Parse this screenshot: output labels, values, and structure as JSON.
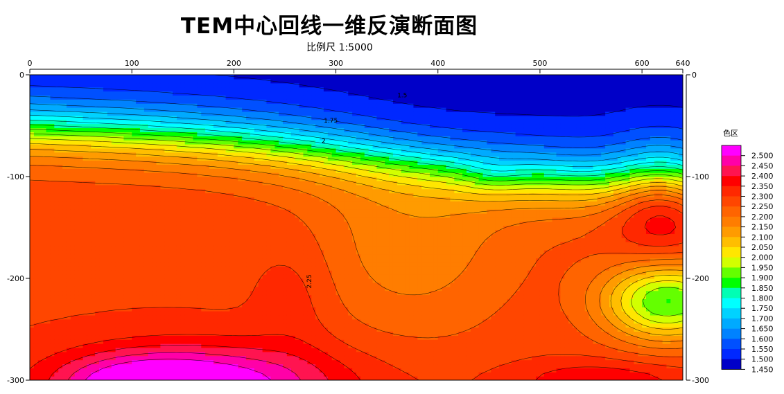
{
  "title": "TEM中心回线一维反演断面图",
  "subtitle": "比例尺 1:5000",
  "legend_title": "色区",
  "chart_data": {
    "type": "heatmap",
    "xlim": [
      0,
      640
    ],
    "ylim": [
      -300,
      0
    ],
    "x_ticks": [
      {
        "value": 0,
        "label": "0"
      },
      {
        "value": 100,
        "label": "100"
      },
      {
        "value": 200,
        "label": "200"
      },
      {
        "value": 300,
        "label": "300"
      },
      {
        "value": 400,
        "label": "400"
      },
      {
        "value": 500,
        "label": "500"
      },
      {
        "value": 600,
        "label": "600"
      },
      {
        "value": 640,
        "label": "640"
      }
    ],
    "y_ticks": [
      {
        "value": 0,
        "label": "0"
      },
      {
        "value": -100,
        "label": "-100"
      },
      {
        "value": -200,
        "label": "-200"
      },
      {
        "value": -300,
        "label": "-300"
      }
    ],
    "colorbar": [
      {
        "value": 2.5,
        "label": "2.500",
        "color": "#ff00ff"
      },
      {
        "value": 2.45,
        "label": "2.450",
        "color": "#ff00a8"
      },
      {
        "value": 2.4,
        "label": "2.400",
        "color": "#ff1450"
      },
      {
        "value": 2.35,
        "label": "2.350",
        "color": "#ff0000"
      },
      {
        "value": 2.3,
        "label": "2.300",
        "color": "#ff2800"
      },
      {
        "value": 2.25,
        "label": "2.250",
        "color": "#ff4600"
      },
      {
        "value": 2.2,
        "label": "2.200",
        "color": "#ff6400"
      },
      {
        "value": 2.15,
        "label": "2.150",
        "color": "#ff7d00"
      },
      {
        "value": 2.1,
        "label": "2.100",
        "color": "#ff9b00"
      },
      {
        "value": 2.05,
        "label": "2.050",
        "color": "#ffbe00"
      },
      {
        "value": 2.0,
        "label": "2.000",
        "color": "#ffe600"
      },
      {
        "value": 1.95,
        "label": "1.950",
        "color": "#d2ff00"
      },
      {
        "value": 1.9,
        "label": "1.900",
        "color": "#64ff00"
      },
      {
        "value": 1.85,
        "label": "1.850",
        "color": "#00ff00"
      },
      {
        "value": 1.8,
        "label": "1.800",
        "color": "#00ffb4"
      },
      {
        "value": 1.75,
        "label": "1.750",
        "color": "#00ffff"
      },
      {
        "value": 1.7,
        "label": "1.700",
        "color": "#00d2ff"
      },
      {
        "value": 1.65,
        "label": "1.650",
        "color": "#00aaff"
      },
      {
        "value": 1.6,
        "label": "1.600",
        "color": "#0082ff"
      },
      {
        "value": 1.55,
        "label": "1.550",
        "color": "#0050ff"
      },
      {
        "value": 1.5,
        "label": "1.500",
        "color": "#0028ff"
      },
      {
        "value": 1.45,
        "label": "1.450",
        "color": "#0000c8"
      }
    ],
    "grid": false,
    "contour_labels": [
      {
        "text": "1.5",
        "x": 365,
        "y": -22
      },
      {
        "text": "1.75",
        "x": 295,
        "y": -47
      },
      {
        "text": "2",
        "x": 288,
        "y": -67
      },
      {
        "text": "2.25",
        "x": 276,
        "y": -203
      }
    ]
  }
}
